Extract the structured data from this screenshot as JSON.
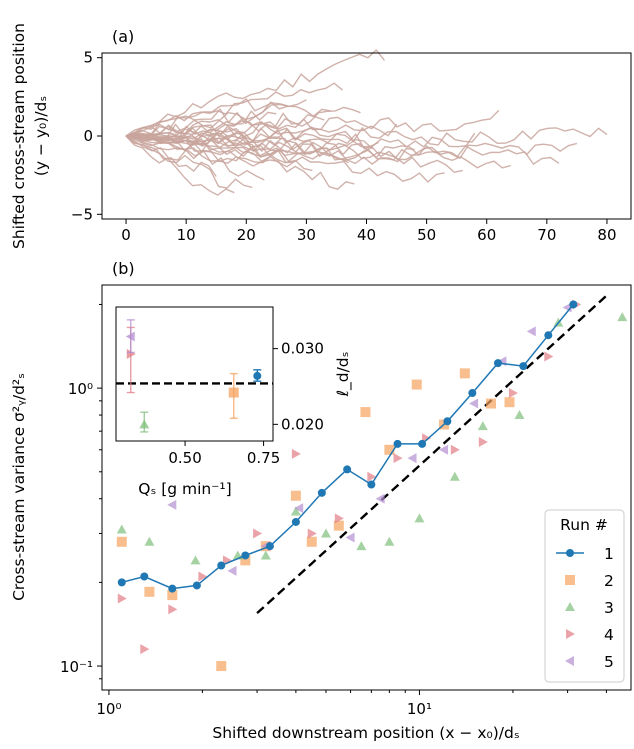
{
  "chart_data": [
    {
      "panel": "(a)",
      "type": "line",
      "ylabel": "Shifted cross-stream position",
      "ylabel2": "(y − y₀)/dₛ",
      "xticks": [
        0,
        10,
        20,
        30,
        40,
        50,
        60,
        70,
        80
      ],
      "yticks": [
        -5,
        0,
        5
      ],
      "xlim": [
        -4,
        84
      ],
      "ylim": [
        -5.3,
        5.3
      ],
      "line_color": "#c8a49c",
      "trajectory_ends": [
        {
          "x": 43,
          "y": 5.1
        },
        {
          "x": 36,
          "y": 3.2
        },
        {
          "x": 34,
          "y": 2.0
        },
        {
          "x": 30,
          "y": 2.6
        },
        {
          "x": 27,
          "y": 1.9
        },
        {
          "x": 39,
          "y": 1.4
        },
        {
          "x": 25,
          "y": 1.1
        },
        {
          "x": 33,
          "y": 0.9
        },
        {
          "x": 20,
          "y": 0.4
        },
        {
          "x": 45,
          "y": 0.6
        },
        {
          "x": 62,
          "y": 1.2
        },
        {
          "x": 80,
          "y": 0.1
        },
        {
          "x": 75,
          "y": -1.2
        },
        {
          "x": 72,
          "y": -1.6
        },
        {
          "x": 64,
          "y": -1.9
        },
        {
          "x": 56,
          "y": -1.7
        },
        {
          "x": 53,
          "y": -2.6
        },
        {
          "x": 48,
          "y": -1.4
        },
        {
          "x": 41,
          "y": -0.7
        },
        {
          "x": 37,
          "y": -1.8
        },
        {
          "x": 31,
          "y": -2.2
        },
        {
          "x": 28,
          "y": -1.1
        },
        {
          "x": 23,
          "y": -2.5
        },
        {
          "x": 21,
          "y": -3.3
        },
        {
          "x": 18,
          "y": -4.2
        },
        {
          "x": 15,
          "y": -2.7
        },
        {
          "x": 26,
          "y": -0.3
        },
        {
          "x": 42,
          "y": -0.3
        },
        {
          "x": 38,
          "y": -2.8
        },
        {
          "x": 58,
          "y": -0.3
        }
      ]
    },
    {
      "panel": "(b)",
      "type": "scatter",
      "xscale": "log",
      "yscale": "log",
      "xlabel": "Shifted downstream position  (x − x₀)/dₛ",
      "ylabel": "Cross-stream variance  σ²ᵧ/d²ₛ",
      "xlim": [
        0.95,
        48
      ],
      "ylim": [
        0.082,
        2.35
      ],
      "xtick_labels": [
        "10⁰",
        "10¹"
      ],
      "ytick_labels": [
        "10⁻¹",
        "10⁰"
      ],
      "reference_line": {
        "x": [
          3.0,
          40
        ],
        "y": [
          0.155,
          2.15
        ],
        "style": "dashed"
      },
      "legend": {
        "title": "Run #",
        "position": "bottom-right",
        "entries": [
          "1",
          "2",
          "3",
          "4",
          "5"
        ]
      },
      "series": [
        {
          "name": "1",
          "color": "#1f77b4",
          "marker": "circle-line",
          "x": [
            1.1,
            1.3,
            1.6,
            1.92,
            2.3,
            2.75,
            3.3,
            4.0,
            4.85,
            5.85,
            7.0,
            8.5,
            10.2,
            12.3,
            14.8,
            17.9,
            21.6,
            26.0,
            31.3
          ],
          "y": [
            0.2,
            0.21,
            0.19,
            0.195,
            0.23,
            0.25,
            0.27,
            0.33,
            0.42,
            0.51,
            0.45,
            0.63,
            0.63,
            0.76,
            0.96,
            1.23,
            1.2,
            1.55,
            2.0
          ]
        },
        {
          "name": "2",
          "color": "#f5a25d",
          "marker": "square",
          "x": [
            1.1,
            1.35,
            1.6,
            2.3,
            2.75,
            3.2,
            4.0,
            4.5,
            5.5,
            6.7,
            8.0,
            9.8,
            12,
            14,
            17,
            19.5
          ],
          "y": [
            0.28,
            0.185,
            0.18,
            0.1,
            0.24,
            0.27,
            0.41,
            0.28,
            0.32,
            0.82,
            0.6,
            1.03,
            0.74,
            1.13,
            0.88,
            0.89
          ]
        },
        {
          "name": "3",
          "color": "#7fbf7b",
          "marker": "triangle-up",
          "x": [
            1.1,
            1.35,
            1.9,
            2.6,
            3.2,
            4.0,
            5.0,
            6.5,
            8.0,
            10.0,
            13.0,
            16.0,
            21,
            28,
            45
          ],
          "y": [
            0.31,
            0.28,
            0.24,
            0.25,
            0.25,
            0.36,
            0.3,
            0.27,
            0.28,
            0.34,
            0.48,
            0.73,
            0.8,
            1.72,
            1.8
          ]
        },
        {
          "name": "4",
          "color": "#e27c86",
          "marker": "triangle-right",
          "x": [
            1.1,
            1.3,
            1.6,
            2.0,
            2.4,
            3.0,
            4.0,
            4.5,
            5.5,
            7.0,
            8.5,
            10.5,
            13,
            16,
            20,
            26,
            32
          ],
          "y": [
            0.175,
            0.115,
            0.16,
            0.21,
            0.24,
            0.3,
            0.58,
            0.3,
            0.34,
            0.48,
            0.56,
            0.66,
            0.6,
            0.64,
            0.96,
            1.3,
            2.0
          ]
        },
        {
          "name": "5",
          "color": "#b38ed1",
          "marker": "triangle-left",
          "x": [
            1.6,
            2.5,
            3.2,
            4.1,
            6.0,
            7.5,
            9.5,
            12,
            15,
            18.5,
            23,
            30
          ],
          "y": [
            0.38,
            0.22,
            0.27,
            0.37,
            0.29,
            0.4,
            0.56,
            0.6,
            0.88,
            1.25,
            1.6,
            1.95
          ]
        }
      ]
    },
    {
      "panel": "inset",
      "type": "scatter",
      "xlabel": "Qₛ  [g min⁻¹]",
      "ylabel": "ℓ_d/dₛ",
      "xticks": [
        0.5,
        0.75
      ],
      "yticks": [
        0.02,
        0.03
      ],
      "xlim": [
        0.28,
        0.78
      ],
      "ylim": [
        0.0178,
        0.0355
      ],
      "reference_line_y": 0.0254,
      "points": [
        {
          "name": "1",
          "color": "#1f77b4",
          "marker": "circle",
          "x": 0.73,
          "y": 0.0264,
          "err": [
            0.0257,
            0.0272
          ]
        },
        {
          "name": "2",
          "color": "#f5a25d",
          "marker": "square",
          "x": 0.655,
          "y": 0.0242,
          "err": [
            0.0208,
            0.0267
          ]
        },
        {
          "name": "3",
          "color": "#7fbf7b",
          "marker": "triangle-up",
          "x": 0.37,
          "y": 0.02,
          "err": [
            0.019,
            0.0216
          ]
        },
        {
          "name": "4",
          "color": "#e27c86",
          "marker": "triangle-right",
          "x": 0.327,
          "y": 0.0293,
          "err": [
            0.0242,
            0.0328
          ]
        },
        {
          "name": "5",
          "color": "#b38ed1",
          "marker": "triangle-left",
          "x": 0.327,
          "y": 0.0316,
          "err": [
            0.0295,
            0.0338
          ]
        }
      ]
    }
  ]
}
